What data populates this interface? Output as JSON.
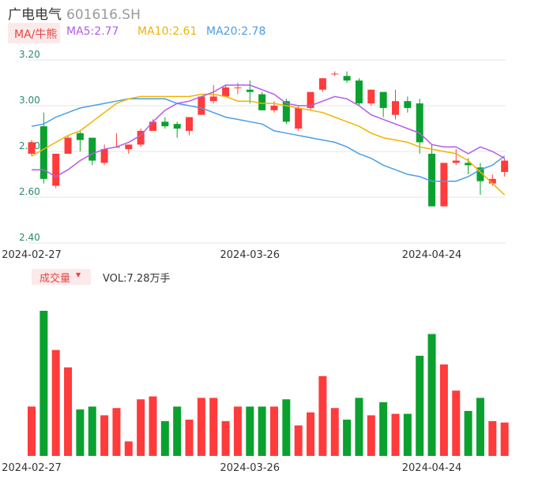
{
  "header": {
    "name": "广电电气",
    "code": "601616.SH"
  },
  "indicator": {
    "ma_label": "MA/牛熊",
    "ma5": "MA5:2.77",
    "ma10": "MA10:2.61",
    "ma20": "MA20:2.78"
  },
  "volume_panel": {
    "label": "成交量",
    "vol_text": "VOL:7.28万手"
  },
  "colors": {
    "up": "#ff3b3b",
    "down": "#0aa12f",
    "ma5": "#b25de8",
    "ma10": "#f0b400",
    "ma20": "#4a9ee8",
    "grid": "#e6e6e6",
    "axis_text": "#2b8a6f"
  },
  "chart_data": [
    {
      "type": "candlestick",
      "y_ticks": [
        "3.20",
        "3.00",
        "2.80",
        "2.60",
        "2.40"
      ],
      "ylim": [
        2.4,
        3.2
      ],
      "x_labels": [
        "2024-02-27",
        "2024-03-26",
        "2024-04-24"
      ],
      "x_label_index": [
        0,
        18,
        33
      ],
      "candles": [
        {
          "o": 2.79,
          "h": 2.85,
          "l": 2.78,
          "c": 2.84
        },
        {
          "o": 2.91,
          "h": 2.97,
          "l": 2.66,
          "c": 2.68
        },
        {
          "o": 2.65,
          "h": 2.79,
          "l": 2.64,
          "c": 2.79
        },
        {
          "o": 2.79,
          "h": 2.87,
          "l": 2.79,
          "c": 2.86
        },
        {
          "o": 2.88,
          "h": 2.89,
          "l": 2.8,
          "c": 2.85
        },
        {
          "o": 2.86,
          "h": 2.86,
          "l": 2.74,
          "c": 2.76
        },
        {
          "o": 2.75,
          "h": 2.83,
          "l": 2.74,
          "c": 2.81
        },
        {
          "o": 2.82,
          "h": 2.88,
          "l": 2.82,
          "c": 2.82
        },
        {
          "o": 2.81,
          "h": 2.83,
          "l": 2.79,
          "c": 2.83
        },
        {
          "o": 2.83,
          "h": 2.9,
          "l": 2.82,
          "c": 2.89
        },
        {
          "o": 2.89,
          "h": 2.94,
          "l": 2.89,
          "c": 2.93
        },
        {
          "o": 2.93,
          "h": 2.95,
          "l": 2.9,
          "c": 2.91
        },
        {
          "o": 2.92,
          "h": 2.93,
          "l": 2.86,
          "c": 2.9
        },
        {
          "o": 2.89,
          "h": 2.95,
          "l": 2.87,
          "c": 2.95
        },
        {
          "o": 2.96,
          "h": 3.04,
          "l": 2.96,
          "c": 3.04
        },
        {
          "o": 3.02,
          "h": 3.09,
          "l": 3.01,
          "c": 3.04
        },
        {
          "o": 3.04,
          "h": 3.09,
          "l": 3.04,
          "c": 3.08
        },
        {
          "o": 3.08,
          "h": 3.1,
          "l": 3.05,
          "c": 3.08
        },
        {
          "o": 3.07,
          "h": 3.11,
          "l": 3.01,
          "c": 3.06
        },
        {
          "o": 3.05,
          "h": 3.06,
          "l": 2.98,
          "c": 2.98
        },
        {
          "o": 2.98,
          "h": 3.02,
          "l": 2.97,
          "c": 3.0
        },
        {
          "o": 3.02,
          "h": 3.03,
          "l": 2.92,
          "c": 2.93
        },
        {
          "o": 2.9,
          "h": 3.0,
          "l": 2.89,
          "c": 2.99
        },
        {
          "o": 2.99,
          "h": 3.06,
          "l": 2.98,
          "c": 3.06
        },
        {
          "o": 3.07,
          "h": 3.12,
          "l": 3.06,
          "c": 3.12
        },
        {
          "o": 3.14,
          "h": 3.15,
          "l": 3.13,
          "c": 3.14
        },
        {
          "o": 3.13,
          "h": 3.15,
          "l": 3.1,
          "c": 3.11
        },
        {
          "o": 3.11,
          "h": 3.12,
          "l": 3.0,
          "c": 3.01
        },
        {
          "o": 3.01,
          "h": 3.07,
          "l": 3.0,
          "c": 3.07
        },
        {
          "o": 3.06,
          "h": 3.06,
          "l": 2.95,
          "c": 2.99
        },
        {
          "o": 2.96,
          "h": 3.07,
          "l": 2.94,
          "c": 3.02
        },
        {
          "o": 3.02,
          "h": 3.04,
          "l": 2.97,
          "c": 2.99
        },
        {
          "o": 3.01,
          "h": 3.03,
          "l": 2.79,
          "c": 2.84
        },
        {
          "o": 2.79,
          "h": 2.83,
          "l": 2.56,
          "c": 2.56
        },
        {
          "o": 2.56,
          "h": 2.75,
          "l": 2.56,
          "c": 2.75
        },
        {
          "o": 2.75,
          "h": 2.81,
          "l": 2.74,
          "c": 2.76
        },
        {
          "o": 2.75,
          "h": 2.77,
          "l": 2.7,
          "c": 2.74
        },
        {
          "o": 2.73,
          "h": 2.75,
          "l": 2.61,
          "c": 2.67
        },
        {
          "o": 2.66,
          "h": 2.7,
          "l": 2.65,
          "c": 2.68
        },
        {
          "o": 2.71,
          "h": 2.77,
          "l": 2.69,
          "c": 2.76
        }
      ],
      "ma5": [
        2.72,
        2.72,
        2.69,
        2.72,
        2.76,
        2.79,
        2.81,
        2.82,
        2.84,
        2.87,
        2.93,
        2.98,
        3.01,
        3.02,
        3.04,
        3.06,
        3.09,
        3.09,
        3.09,
        3.07,
        3.05,
        3.01,
        3.0,
        3.0,
        3.02,
        3.04,
        3.03,
        3.0,
        2.96,
        2.94,
        2.92,
        2.9,
        2.88,
        2.83,
        2.82,
        2.82,
        2.79,
        2.82,
        2.8,
        2.77
      ],
      "ma10": [
        2.78,
        2.81,
        2.84,
        2.87,
        2.89,
        2.93,
        2.97,
        3.01,
        3.03,
        3.04,
        3.04,
        3.04,
        3.04,
        3.04,
        3.05,
        3.05,
        3.04,
        3.02,
        3.02,
        3.01,
        3.01,
        3.0,
        2.99,
        2.98,
        2.97,
        2.95,
        2.93,
        2.91,
        2.88,
        2.86,
        2.85,
        2.84,
        2.82,
        2.81,
        2.8,
        2.79,
        2.76,
        2.71,
        2.66,
        2.61
      ],
      "ma20": [
        2.91,
        2.92,
        2.95,
        2.97,
        2.99,
        3.0,
        3.01,
        3.02,
        3.03,
        3.03,
        3.03,
        3.03,
        3.01,
        3.0,
        2.99,
        2.97,
        2.95,
        2.94,
        2.93,
        2.92,
        2.89,
        2.88,
        2.87,
        2.86,
        2.85,
        2.84,
        2.82,
        2.79,
        2.77,
        2.74,
        2.72,
        2.7,
        2.69,
        2.67,
        2.67,
        2.67,
        2.69,
        2.72,
        2.74,
        2.78
      ]
    },
    {
      "type": "bar",
      "label": "成交量",
      "x_labels": [
        "2024-02-27",
        "2024-03-26",
        "2024-04-24"
      ],
      "x_label_index": [
        0,
        18,
        33
      ],
      "relative_volume": [
        0.34,
        1.0,
        0.73,
        0.61,
        0.32,
        0.34,
        0.28,
        0.33,
        0.1,
        0.39,
        0.41,
        0.24,
        0.34,
        0.25,
        0.4,
        0.4,
        0.24,
        0.34,
        0.34,
        0.34,
        0.34,
        0.39,
        0.21,
        0.3,
        0.55,
        0.33,
        0.25,
        0.4,
        0.28,
        0.37,
        0.29,
        0.29,
        0.69,
        0.84,
        0.63,
        0.45,
        0.31,
        0.4,
        0.24,
        0.23
      ]
    }
  ]
}
